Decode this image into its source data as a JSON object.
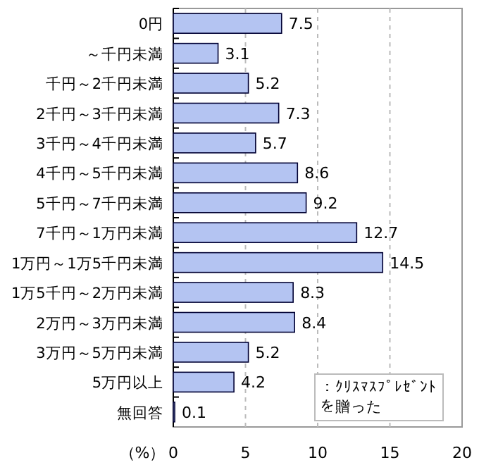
{
  "chart_data": {
    "type": "bar",
    "orientation": "horizontal",
    "categories": [
      "0円",
      "～千円未満",
      "千円～2千円未満",
      "2千円～3千円未満",
      "3千円～4千円未満",
      "4千円～5千円未満",
      "5千円～7千円未満",
      "7千円～1万円未満",
      "1万円～1万5千円未満",
      "1万5千円～2万円未満",
      "2万円～3万円未満",
      "3万円～5万円未満",
      "5万円以上",
      "無回答"
    ],
    "values": [
      7.5,
      3.1,
      5.2,
      7.3,
      5.7,
      8.6,
      9.2,
      12.7,
      14.5,
      8.3,
      8.4,
      5.2,
      4.2,
      0.1
    ],
    "color": "#b4c4f2",
    "data_labels": true,
    "xlim": [
      0,
      20
    ],
    "xticks": [
      0,
      5,
      10,
      15,
      20
    ],
    "grid": "x",
    "xlabel": "（%）",
    "annotations": [
      "：ｸﾘｽﾏｽﾌﾟﾚｾﾞﾝﾄを贈った"
    ]
  }
}
